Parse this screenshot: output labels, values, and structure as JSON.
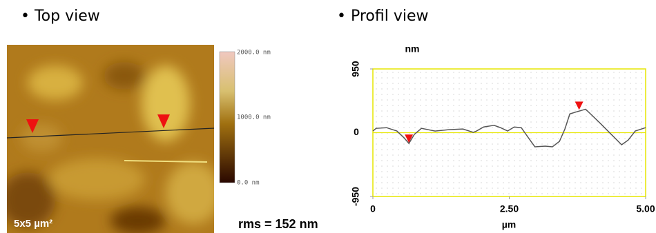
{
  "top_view": {
    "title": "• Top view",
    "scale_label": "5x5 µm²",
    "colorbar_labels": [
      "2000.0 nm",
      "1000.0 nm",
      "0.0 nm"
    ]
  },
  "rms": "rms = 152 nm",
  "chart_data": {
    "type": "line",
    "title": "• Profil view",
    "y_label": "nm",
    "x_label": "µm",
    "x": [
      0,
      0.06,
      0.25,
      0.44,
      0.57,
      0.66,
      0.76,
      0.89,
      1.14,
      1.39,
      1.65,
      1.84,
      1.9,
      2.03,
      2.22,
      2.34,
      2.47,
      2.59,
      2.72,
      2.85,
      2.97,
      3.16,
      3.29,
      3.42,
      3.52,
      3.61,
      3.73,
      3.9,
      3.99,
      4.18,
      4.37,
      4.56,
      4.68,
      4.81,
      5.0
    ],
    "series": [
      {
        "color": "#555555",
        "values": [
          25,
          65,
          75,
          25,
          -75,
          -160,
          -25,
          65,
          25,
          45,
          55,
          5,
          25,
          85,
          110,
          75,
          25,
          85,
          75,
          -75,
          -210,
          -200,
          -210,
          -130,
          55,
          280,
          310,
          350,
          280,
          130,
          -25,
          -180,
          -110,
          25,
          75
        ]
      }
    ],
    "markers": {
      "color": "#ee1111",
      "x": [
        0.66,
        3.78
      ],
      "y": [
        -160,
        330
      ]
    },
    "xlim": [
      0,
      5
    ],
    "ylim": [
      -950,
      950
    ],
    "xticks": [
      0,
      {
        "value": 2.5,
        "label": "2.50"
      },
      {
        "value": 5,
        "label": "5.00"
      }
    ],
    "yticks": [
      -950,
      0,
      950
    ]
  }
}
